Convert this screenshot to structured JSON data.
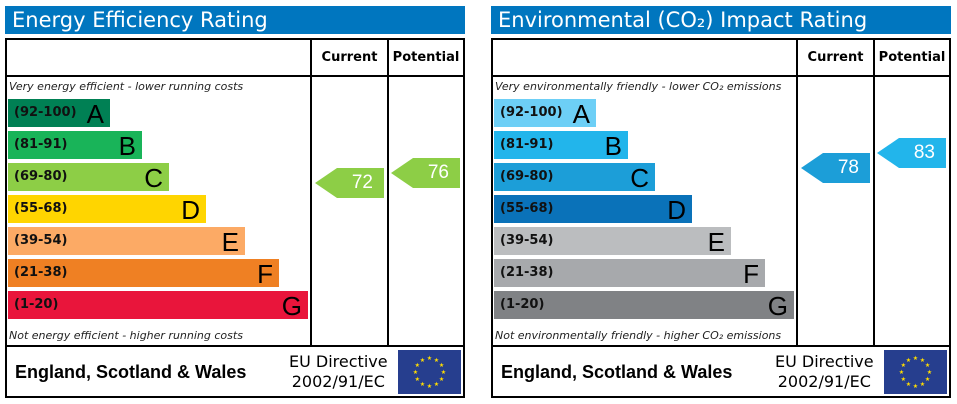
{
  "chart_data": [
    {
      "type": "table",
      "title": "Energy Efficiency Rating",
      "columns": [
        "Current",
        "Potential"
      ],
      "top_note": "Very energy efficient - lower running costs",
      "bottom_note": "Not energy efficient - higher running costs",
      "bands": [
        {
          "range": "(92-100)",
          "letter": "A",
          "color": "#008054"
        },
        {
          "range": "(81-91)",
          "letter": "B",
          "color": "#19b459"
        },
        {
          "range": "(69-80)",
          "letter": "C",
          "color": "#8dce46"
        },
        {
          "range": "(55-68)",
          "letter": "D",
          "color": "#ffd500"
        },
        {
          "range": "(39-54)",
          "letter": "E",
          "color": "#fcaa65"
        },
        {
          "range": "(21-38)",
          "letter": "F",
          "color": "#ef8023"
        },
        {
          "range": "(1-20)",
          "letter": "G",
          "color": "#e9153b"
        }
      ],
      "current": {
        "value": "72",
        "color": "#8dce46"
      },
      "potential": {
        "value": "76",
        "color": "#8dce46"
      },
      "country": "England, Scotland & Wales",
      "directive": [
        "EU Directive",
        "2002/91/EC"
      ]
    },
    {
      "type": "table",
      "title": "Environmental (CO₂) Impact Rating",
      "columns": [
        "Current",
        "Potential"
      ],
      "top_note": "Very environmentally friendly - lower CO₂ emissions",
      "bottom_note": "Not environmentally friendly - higher CO₂ emissions",
      "bands": [
        {
          "range": "(92-100)",
          "letter": "A",
          "color": "#6dcff6"
        },
        {
          "range": "(81-91)",
          "letter": "B",
          "color": "#22b5eb"
        },
        {
          "range": "(69-80)",
          "letter": "C",
          "color": "#1c9ed8"
        },
        {
          "range": "(55-68)",
          "letter": "D",
          "color": "#0a72b9"
        },
        {
          "range": "(39-54)",
          "letter": "E",
          "color": "#bbbdbf"
        },
        {
          "range": "(21-38)",
          "letter": "F",
          "color": "#a7a9ac"
        },
        {
          "range": "(1-20)",
          "letter": "G",
          "color": "#808285"
        }
      ],
      "current": {
        "value": "78",
        "color": "#1c9ed8"
      },
      "potential": {
        "value": "83",
        "color": "#22b5eb"
      },
      "country": "England, Scotland & Wales",
      "directive": [
        "EU Directive",
        "2002/91/EC"
      ]
    }
  ]
}
